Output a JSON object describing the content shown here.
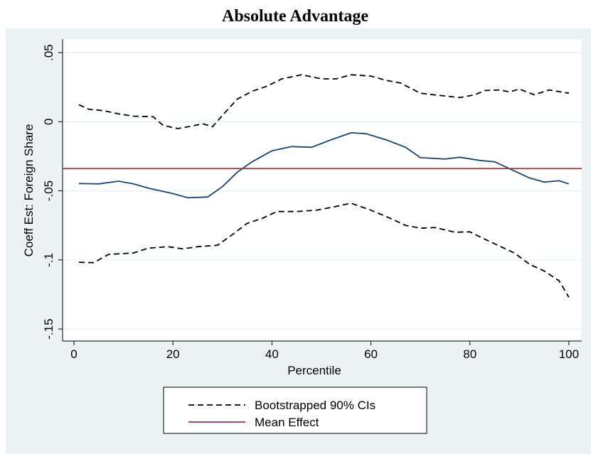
{
  "chart_data": {
    "type": "line",
    "title": "Absolute Advantage",
    "x_label": "Percentile",
    "y_label": "Coeff Est: Foreign Share",
    "xlim": [
      -2.3,
      102.6
    ],
    "ylim": [
      -0.1587,
      0.0598
    ],
    "xticks": [
      0,
      20,
      40,
      60,
      80,
      100
    ],
    "yticks": [
      {
        "value": 0.05,
        "label": ".05"
      },
      0,
      {
        "value": -0.05,
        "label": "-.05"
      },
      {
        "value": -0.1,
        "label": "-.1"
      },
      {
        "value": -0.15,
        "label": "-.15"
      }
    ],
    "grid": true,
    "series": [
      {
        "name": "Bootstrapped 90% CIs",
        "color": "#000000",
        "dash": true,
        "x": [
          1,
          3,
          6,
          9,
          12,
          16,
          18,
          21,
          24,
          26,
          28,
          30,
          33,
          36,
          39,
          42,
          46,
          50,
          53,
          56,
          60,
          63,
          66,
          70,
          74,
          78,
          81,
          83,
          86,
          88,
          90,
          93,
          96,
          100
        ],
        "values": [
          0.0123,
          0.009,
          0.008,
          0.0057,
          0.004,
          0.0036,
          -0.0026,
          -0.005,
          -0.003,
          -0.0015,
          -0.0036,
          0.0046,
          0.0164,
          0.022,
          0.0257,
          0.031,
          0.034,
          0.031,
          0.031,
          0.034,
          0.033,
          0.03,
          0.028,
          0.0206,
          0.019,
          0.0175,
          0.0195,
          0.0226,
          0.023,
          0.0216,
          0.0236,
          0.0195,
          0.023,
          0.0206
        ]
      },
      {
        "color": "#000000",
        "dash": true,
        "x": [
          1,
          4,
          7,
          12,
          15,
          19,
          22,
          25,
          29,
          32,
          35,
          38,
          41,
          45,
          49,
          52,
          56,
          60,
          64,
          67,
          70,
          73,
          77,
          80,
          83,
          86,
          89,
          92,
          95,
          98,
          100
        ],
        "values": [
          -0.1017,
          -0.102,
          -0.096,
          -0.095,
          -0.0915,
          -0.0904,
          -0.092,
          -0.0904,
          -0.0894,
          -0.0817,
          -0.0735,
          -0.07,
          -0.065,
          -0.065,
          -0.064,
          -0.062,
          -0.059,
          -0.064,
          -0.07,
          -0.075,
          -0.077,
          -0.0766,
          -0.08,
          -0.0797,
          -0.085,
          -0.09,
          -0.095,
          -0.103,
          -0.108,
          -0.115,
          -0.127
        ]
      },
      {
        "color": "#1a476f",
        "dash": false,
        "x": [
          1,
          5,
          9,
          12,
          15,
          20,
          23,
          27,
          30,
          33,
          36,
          40,
          44,
          48,
          52,
          56,
          59,
          63,
          67,
          70,
          75,
          78,
          82,
          85,
          88,
          92,
          95,
          98,
          100
        ],
        "values": [
          -0.0447,
          -0.045,
          -0.043,
          -0.045,
          -0.048,
          -0.052,
          -0.055,
          -0.0545,
          -0.047,
          -0.0365,
          -0.029,
          -0.021,
          -0.018,
          -0.0185,
          -0.013,
          -0.008,
          -0.0087,
          -0.013,
          -0.0185,
          -0.026,
          -0.027,
          -0.0257,
          -0.028,
          -0.029,
          -0.034,
          -0.0406,
          -0.0437,
          -0.0427,
          -0.045
        ]
      }
    ],
    "hline": {
      "name": "Mean Effect",
      "value": -0.0339,
      "color": "#90353b"
    }
  }
}
